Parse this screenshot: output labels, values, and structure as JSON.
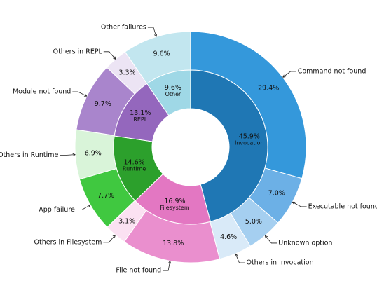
{
  "chart_data": {
    "type": "pie",
    "subtype": "nested-donut",
    "start": "12 o'clock",
    "direction": "clockwise",
    "inner": [
      {
        "name": "Invocation",
        "percent": 45.9,
        "label": "45.9%",
        "color": "#1f77b4"
      },
      {
        "name": "Filesystem",
        "percent": 16.9,
        "label": "16.9%",
        "color": "#e377c2"
      },
      {
        "name": "Runtime",
        "percent": 14.6,
        "label": "14.6%",
        "color": "#2ca02c"
      },
      {
        "name": "REPL",
        "percent": 13.1,
        "label": "13.1%",
        "color": "#9467bd"
      },
      {
        "name": "Other",
        "percent": 9.6,
        "label": "9.6%",
        "color": "#9fd8e6"
      }
    ],
    "outer": [
      {
        "name": "Command not found",
        "percent": 29.4,
        "label": "29.4%",
        "color": "#3498db"
      },
      {
        "name": "Executable not found",
        "percent": 7.0,
        "label": "7.0%",
        "color": "#6cb0e6"
      },
      {
        "name": "Unknown option",
        "percent": 5.0,
        "label": "5.0%",
        "color": "#a5cff0"
      },
      {
        "name": "Others in Invocation",
        "percent": 4.6,
        "label": "4.6%",
        "color": "#d9eaf8"
      },
      {
        "name": "File not found",
        "percent": 13.8,
        "label": "13.8%",
        "color": "#ea8fce"
      },
      {
        "name": "Others in Filesystem",
        "percent": 3.1,
        "label": "3.1%",
        "color": "#fbe1f2"
      },
      {
        "name": "App failure",
        "percent": 7.7,
        "label": "7.7%",
        "color": "#40c840"
      },
      {
        "name": "Others in Runtime",
        "percent": 6.9,
        "label": "6.9%",
        "color": "#d9f4d9"
      },
      {
        "name": "Module not found",
        "percent": 9.7,
        "label": "9.7%",
        "color": "#a985cc"
      },
      {
        "name": "Others in REPL",
        "percent": 3.3,
        "label": "3.3%",
        "color": "#ece4f4"
      },
      {
        "name": "Other failures",
        "percent": 9.6,
        "label": "9.6%",
        "color": "#c2e6ef"
      }
    ]
  }
}
